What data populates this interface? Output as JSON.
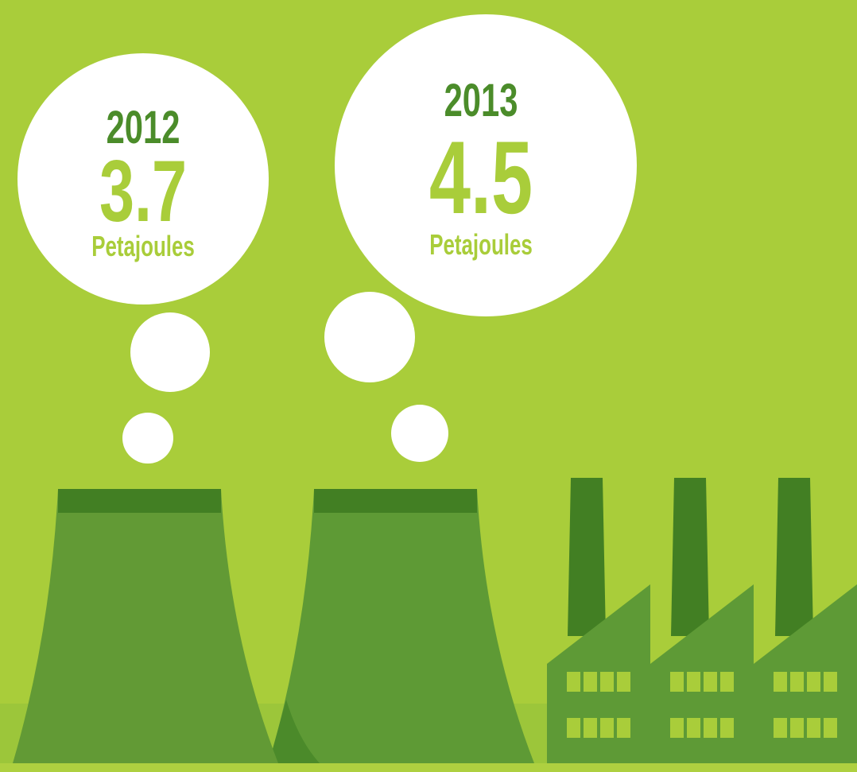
{
  "bubbles": [
    {
      "year": "2012",
      "value": 3.7,
      "unit": "Petajoules"
    },
    {
      "year": "2013",
      "value": 4.5,
      "unit": "Petajoules"
    }
  ]
}
